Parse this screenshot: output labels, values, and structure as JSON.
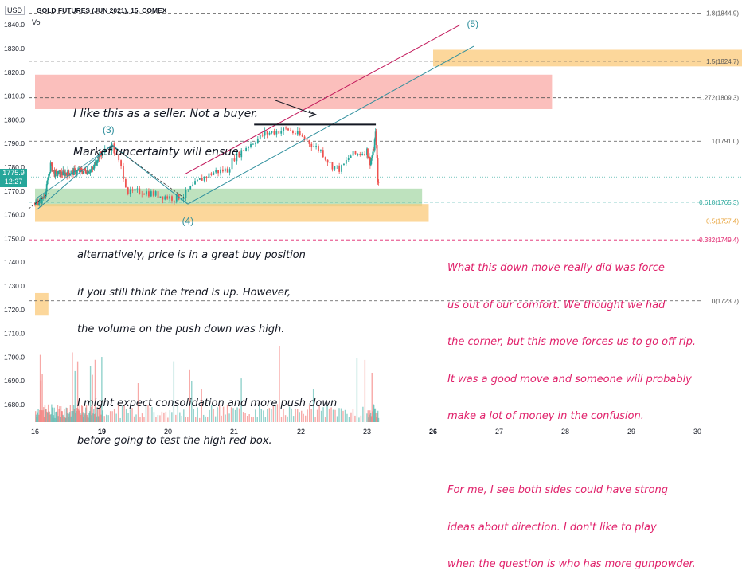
{
  "header": {
    "currency": "USD",
    "symbol": "GOLD FUTURES (JUN 2021), 15, COMEX",
    "volume_label": "Vol"
  },
  "price_badge": {
    "price": "1775.9",
    "countdown": "12:27"
  },
  "colors": {
    "candle_up": "#26a69a",
    "candle_down": "#ef5350",
    "zone_orange": "#fbc97a",
    "zone_red": "#f9a9a6",
    "zone_green": "#a8d8a8",
    "note_black": "#131722",
    "note_pink": "#e0226b",
    "wave_teal": "#2f8f9d"
  },
  "annotations": {
    "seller": [
      "I like this as a seller. Not a buyer.",
      "Market uncertainty will ensue."
    ],
    "buy": [
      "alternatively, price is in a great buy position",
      "if you still think the trend is up. However,",
      "the volume on the push down was high.",
      "",
      "I might expect consolidation and more push down",
      "before going to test the high red box."
    ],
    "down_move": [
      "What this down move really did was force",
      "us out of our comfort. We thought we had",
      "the corner, but this move forces us to go off rip.",
      "It was a good move and someone will probably",
      "make a lot of money in the confusion.",
      "",
      "For me, I see both sides could have strong",
      "ideas about direction. I don't like to play",
      "when the question is who has more gunpowder."
    ]
  },
  "chart_data": {
    "type": "candlestick",
    "title": "GOLD FUTURES (JUN 2021), 15, COMEX",
    "ylabel": "USD",
    "ylim": [
      1675,
      1847
    ],
    "x_ticks": [
      "16",
      "19",
      "20",
      "21",
      "22",
      "23",
      "26",
      "27",
      "28",
      "29",
      "30"
    ],
    "y_ticks": [
      1680.0,
      1690.0,
      1700.0,
      1710.0,
      1720.0,
      1730.0,
      1740.0,
      1750.0,
      1760.0,
      1770.0,
      1780.0,
      1790.0,
      1800.0,
      1810.0,
      1820.0,
      1830.0,
      1840.0
    ],
    "current_price": 1775.9,
    "fib_levels": [
      {
        "label": "1.8(1844.9)",
        "value": 1844.9
      },
      {
        "label": "1.5(1824.7)",
        "value": 1824.7
      },
      {
        "label": "1.272(1809.3)",
        "value": 1809.3
      },
      {
        "label": "1(1791.0)",
        "value": 1791.0
      },
      {
        "label": "0.618(1765.3)",
        "value": 1765.3
      },
      {
        "label": "0.5(1757.4)",
        "value": 1757.4
      },
      {
        "label": "0.382(1749.4)",
        "value": 1749.4
      },
      {
        "label": "0(1723.7)",
        "value": 1723.7
      }
    ],
    "zones": [
      {
        "color": "orange",
        "x": [
          26.0,
          30.9
        ],
        "y": [
          1822.5,
          1829.5
        ]
      },
      {
        "color": "red",
        "x": [
          16.0,
          27.8
        ],
        "y": [
          1804.5,
          1819.0
        ]
      },
      {
        "color": "green",
        "x": [
          16.0,
          25.5
        ],
        "y": [
          1763.5,
          1771.0
        ]
      },
      {
        "color": "orange",
        "x": [
          16.0,
          25.8
        ],
        "y": [
          1757.0,
          1764.5
        ]
      },
      {
        "color": "orange",
        "x": [
          16.0,
          16.6
        ],
        "y": [
          1717.5,
          1727.0
        ]
      }
    ],
    "wave_labels": [
      {
        "label": "(3)",
        "x": 19.1,
        "y": 1794.5
      },
      {
        "label": "(4)",
        "x": 20.3,
        "y": 1756.0
      },
      {
        "label": "(5)",
        "x": 26.6,
        "y": 1839.0
      }
    ],
    "resistance_line": {
      "x": [
        21.3,
        23.4
      ],
      "y": 1798.0
    },
    "close_series": [
      {
        "x": 16.0,
        "y": 1765.0
      },
      {
        "x": 16.3,
        "y": 1766.0
      },
      {
        "x": 16.5,
        "y": 1770.0
      },
      {
        "x": 16.6,
        "y": 1776.0
      },
      {
        "x": 16.7,
        "y": 1781.0
      },
      {
        "x": 16.9,
        "y": 1777.0
      },
      {
        "x": 18.6,
        "y": 1779.0
      },
      {
        "x": 18.8,
        "y": 1784.0
      },
      {
        "x": 19.0,
        "y": 1786.0
      },
      {
        "x": 19.15,
        "y": 1789.0
      },
      {
        "x": 19.3,
        "y": 1779.0
      },
      {
        "x": 19.4,
        "y": 1769.0
      },
      {
        "x": 19.6,
        "y": 1770.0
      },
      {
        "x": 19.9,
        "y": 1768.0
      },
      {
        "x": 20.1,
        "y": 1767.0
      },
      {
        "x": 20.25,
        "y": 1768.0
      },
      {
        "x": 20.3,
        "y": 1770.0
      },
      {
        "x": 20.5,
        "y": 1775.0
      },
      {
        "x": 20.7,
        "y": 1778.0
      },
      {
        "x": 20.9,
        "y": 1779.0
      },
      {
        "x": 21.0,
        "y": 1784.0
      },
      {
        "x": 21.2,
        "y": 1789.0
      },
      {
        "x": 21.45,
        "y": 1794.0
      },
      {
        "x": 21.6,
        "y": 1795.0
      },
      {
        "x": 21.8,
        "y": 1796.0
      },
      {
        "x": 22.0,
        "y": 1793.0
      },
      {
        "x": 22.1,
        "y": 1791.0
      },
      {
        "x": 22.3,
        "y": 1787.0
      },
      {
        "x": 22.45,
        "y": 1781.0
      },
      {
        "x": 22.6,
        "y": 1779.0
      },
      {
        "x": 22.75,
        "y": 1785.0
      },
      {
        "x": 22.9,
        "y": 1786.0
      },
      {
        "x": 23.0,
        "y": 1787.0
      },
      {
        "x": 23.15,
        "y": 1782.0
      },
      {
        "x": 23.3,
        "y": 1787.0
      },
      {
        "x": 23.4,
        "y": 1795.0
      },
      {
        "x": 23.45,
        "y": 1784.0
      },
      {
        "x": 23.5,
        "y": 1771.0
      },
      {
        "x": 23.55,
        "y": 1775.9
      }
    ]
  }
}
